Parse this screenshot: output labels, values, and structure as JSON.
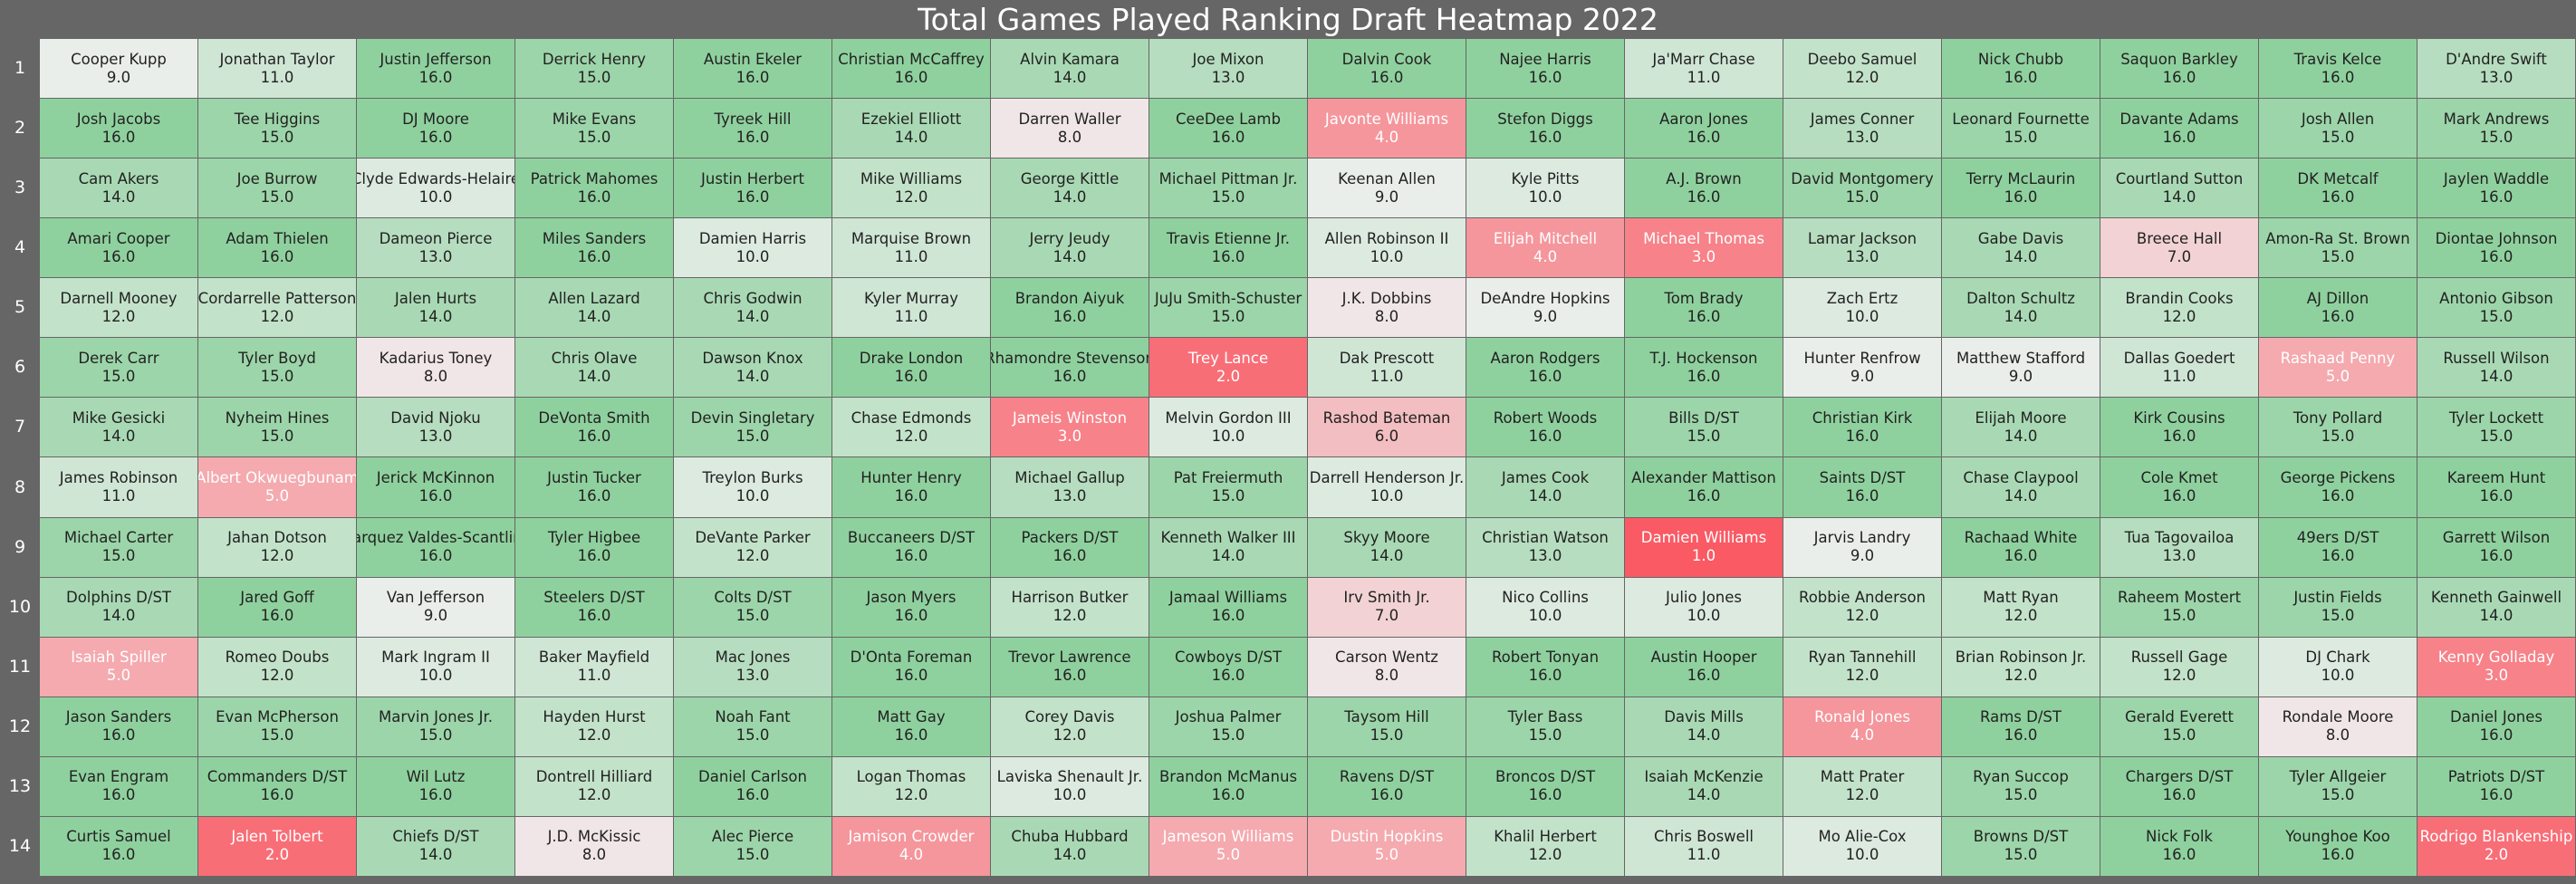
{
  "chart_data": {
    "type": "heatmap",
    "title": "Total Games Played Ranking Draft Heatmap 2022",
    "rows": [
      "1",
      "2",
      "3",
      "4",
      "5",
      "6",
      "7",
      "8",
      "9",
      "10",
      "11",
      "12",
      "13",
      "14"
    ],
    "value_range": [
      1,
      16
    ],
    "colormap": {
      "low": "#f95a64",
      "mid": "#f0f0f0",
      "high": "#8fd19e"
    },
    "cells": [
      [
        [
          "Cooper Kupp",
          "9.0"
        ],
        [
          "Jonathan Taylor",
          "11.0"
        ],
        [
          "Justin Jefferson",
          "16.0"
        ],
        [
          "Derrick Henry",
          "15.0"
        ],
        [
          "Austin Ekeler",
          "16.0"
        ],
        [
          "Christian McCaffrey",
          "16.0"
        ],
        [
          "Alvin Kamara",
          "14.0"
        ],
        [
          "Joe Mixon",
          "13.0"
        ],
        [
          "Dalvin Cook",
          "16.0"
        ],
        [
          "Najee Harris",
          "16.0"
        ],
        [
          "Ja'Marr Chase",
          "11.0"
        ],
        [
          "Deebo Samuel",
          "12.0"
        ],
        [
          "Nick Chubb",
          "16.0"
        ],
        [
          "Saquon Barkley",
          "16.0"
        ],
        [
          "Travis Kelce",
          "16.0"
        ],
        [
          "D'Andre Swift",
          "13.0"
        ]
      ],
      [
        [
          "Josh Jacobs",
          "16.0"
        ],
        [
          "Tee Higgins",
          "15.0"
        ],
        [
          "DJ Moore",
          "16.0"
        ],
        [
          "Mike Evans",
          "15.0"
        ],
        [
          "Tyreek Hill",
          "16.0"
        ],
        [
          "Ezekiel Elliott",
          "14.0"
        ],
        [
          "Darren Waller",
          "8.0"
        ],
        [
          "CeeDee Lamb",
          "16.0"
        ],
        [
          "Javonte Williams",
          "4.0"
        ],
        [
          "Stefon Diggs",
          "16.0"
        ],
        [
          "Aaron Jones",
          "16.0"
        ],
        [
          "James Conner",
          "13.0"
        ],
        [
          "Leonard Fournette",
          "15.0"
        ],
        [
          "Davante Adams",
          "16.0"
        ],
        [
          "Josh Allen",
          "15.0"
        ],
        [
          "Mark Andrews",
          "15.0"
        ]
      ],
      [
        [
          "Cam Akers",
          "14.0"
        ],
        [
          "Joe Burrow",
          "15.0"
        ],
        [
          "Clyde Edwards-Helaire",
          "10.0"
        ],
        [
          "Patrick Mahomes",
          "16.0"
        ],
        [
          "Justin Herbert",
          "16.0"
        ],
        [
          "Mike Williams",
          "12.0"
        ],
        [
          "George Kittle",
          "14.0"
        ],
        [
          "Michael Pittman Jr.",
          "15.0"
        ],
        [
          "Keenan Allen",
          "9.0"
        ],
        [
          "Kyle Pitts",
          "10.0"
        ],
        [
          "A.J. Brown",
          "16.0"
        ],
        [
          "David Montgomery",
          "15.0"
        ],
        [
          "Terry McLaurin",
          "16.0"
        ],
        [
          "Courtland Sutton",
          "14.0"
        ],
        [
          "DK Metcalf",
          "16.0"
        ],
        [
          "Jaylen Waddle",
          "16.0"
        ]
      ],
      [
        [
          "Amari Cooper",
          "16.0"
        ],
        [
          "Adam Thielen",
          "16.0"
        ],
        [
          "Dameon Pierce",
          "13.0"
        ],
        [
          "Miles Sanders",
          "16.0"
        ],
        [
          "Damien Harris",
          "10.0"
        ],
        [
          "Marquise Brown",
          "11.0"
        ],
        [
          "Jerry Jeudy",
          "14.0"
        ],
        [
          "Travis Etienne Jr.",
          "16.0"
        ],
        [
          "Allen Robinson II",
          "10.0"
        ],
        [
          "Elijah Mitchell",
          "4.0"
        ],
        [
          "Michael Thomas",
          "3.0"
        ],
        [
          "Lamar Jackson",
          "13.0"
        ],
        [
          "Gabe Davis",
          "14.0"
        ],
        [
          "Breece Hall",
          "7.0"
        ],
        [
          "Amon-Ra St. Brown",
          "15.0"
        ],
        [
          "Diontae Johnson",
          "16.0"
        ]
      ],
      [
        [
          "Darnell Mooney",
          "12.0"
        ],
        [
          "Cordarrelle Patterson",
          "12.0"
        ],
        [
          "Jalen Hurts",
          "14.0"
        ],
        [
          "Allen Lazard",
          "14.0"
        ],
        [
          "Chris Godwin",
          "14.0"
        ],
        [
          "Kyler Murray",
          "11.0"
        ],
        [
          "Brandon Aiyuk",
          "16.0"
        ],
        [
          "JuJu Smith-Schuster",
          "15.0"
        ],
        [
          "J.K. Dobbins",
          "8.0"
        ],
        [
          "DeAndre Hopkins",
          "9.0"
        ],
        [
          "Tom Brady",
          "16.0"
        ],
        [
          "Zach Ertz",
          "10.0"
        ],
        [
          "Dalton Schultz",
          "14.0"
        ],
        [
          "Brandin Cooks",
          "12.0"
        ],
        [
          "AJ Dillon",
          "16.0"
        ],
        [
          "Antonio Gibson",
          "15.0"
        ]
      ],
      [
        [
          "Derek Carr",
          "15.0"
        ],
        [
          "Tyler Boyd",
          "15.0"
        ],
        [
          "Kadarius Toney",
          "8.0"
        ],
        [
          "Chris Olave",
          "14.0"
        ],
        [
          "Dawson Knox",
          "14.0"
        ],
        [
          "Drake London",
          "16.0"
        ],
        [
          "Rhamondre Stevenson",
          "16.0"
        ],
        [
          "Trey Lance",
          "2.0"
        ],
        [
          "Dak Prescott",
          "11.0"
        ],
        [
          "Aaron Rodgers",
          "16.0"
        ],
        [
          "T.J. Hockenson",
          "16.0"
        ],
        [
          "Hunter Renfrow",
          "9.0"
        ],
        [
          "Matthew Stafford",
          "9.0"
        ],
        [
          "Dallas Goedert",
          "11.0"
        ],
        [
          "Rashaad Penny",
          "5.0"
        ],
        [
          "Russell Wilson",
          "14.0"
        ]
      ],
      [
        [
          "Mike Gesicki",
          "14.0"
        ],
        [
          "Nyheim Hines",
          "15.0"
        ],
        [
          "David Njoku",
          "13.0"
        ],
        [
          "DeVonta Smith",
          "16.0"
        ],
        [
          "Devin Singletary",
          "15.0"
        ],
        [
          "Chase Edmonds",
          "12.0"
        ],
        [
          "Jameis Winston",
          "3.0"
        ],
        [
          "Melvin Gordon III",
          "10.0"
        ],
        [
          "Rashod Bateman",
          "6.0"
        ],
        [
          "Robert Woods",
          "16.0"
        ],
        [
          "Bills D/ST",
          "15.0"
        ],
        [
          "Christian Kirk",
          "16.0"
        ],
        [
          "Elijah Moore",
          "14.0"
        ],
        [
          "Kirk Cousins",
          "16.0"
        ],
        [
          "Tony Pollard",
          "15.0"
        ],
        [
          "Tyler Lockett",
          "15.0"
        ]
      ],
      [
        [
          "James Robinson",
          "11.0"
        ],
        [
          "Albert Okwuegbunam",
          "5.0"
        ],
        [
          "Jerick McKinnon",
          "16.0"
        ],
        [
          "Justin Tucker",
          "16.0"
        ],
        [
          "Treylon Burks",
          "10.0"
        ],
        [
          "Hunter Henry",
          "16.0"
        ],
        [
          "Michael Gallup",
          "13.0"
        ],
        [
          "Pat Freiermuth",
          "15.0"
        ],
        [
          "Darrell Henderson Jr.",
          "10.0"
        ],
        [
          "James Cook",
          "14.0"
        ],
        [
          "Alexander Mattison",
          "16.0"
        ],
        [
          "Saints D/ST",
          "16.0"
        ],
        [
          "Chase Claypool",
          "14.0"
        ],
        [
          "Cole Kmet",
          "16.0"
        ],
        [
          "George Pickens",
          "16.0"
        ],
        [
          "Kareem Hunt",
          "16.0"
        ]
      ],
      [
        [
          "Michael Carter",
          "15.0"
        ],
        [
          "Jahan Dotson",
          "12.0"
        ],
        [
          "Marquez Valdes-Scantling",
          "16.0"
        ],
        [
          "Tyler Higbee",
          "16.0"
        ],
        [
          "DeVante Parker",
          "12.0"
        ],
        [
          "Buccaneers D/ST",
          "16.0"
        ],
        [
          "Packers D/ST",
          "16.0"
        ],
        [
          "Kenneth Walker III",
          "14.0"
        ],
        [
          "Skyy Moore",
          "14.0"
        ],
        [
          "Christian Watson",
          "13.0"
        ],
        [
          "Damien Williams",
          "1.0"
        ],
        [
          "Jarvis Landry",
          "9.0"
        ],
        [
          "Rachaad White",
          "16.0"
        ],
        [
          "Tua Tagovailoa",
          "13.0"
        ],
        [
          "49ers D/ST",
          "16.0"
        ],
        [
          "Garrett Wilson",
          "16.0"
        ]
      ],
      [
        [
          "Dolphins D/ST",
          "14.0"
        ],
        [
          "Jared Goff",
          "16.0"
        ],
        [
          "Van Jefferson",
          "9.0"
        ],
        [
          "Steelers D/ST",
          "16.0"
        ],
        [
          "Colts D/ST",
          "15.0"
        ],
        [
          "Jason Myers",
          "16.0"
        ],
        [
          "Harrison Butker",
          "12.0"
        ],
        [
          "Jamaal Williams",
          "16.0"
        ],
        [
          "Irv Smith Jr.",
          "7.0"
        ],
        [
          "Nico Collins",
          "10.0"
        ],
        [
          "Julio Jones",
          "10.0"
        ],
        [
          "Robbie Anderson",
          "12.0"
        ],
        [
          "Matt Ryan",
          "12.0"
        ],
        [
          "Raheem Mostert",
          "15.0"
        ],
        [
          "Justin Fields",
          "15.0"
        ],
        [
          "Kenneth Gainwell",
          "14.0"
        ]
      ],
      [
        [
          "Isaiah Spiller",
          "5.0"
        ],
        [
          "Romeo Doubs",
          "12.0"
        ],
        [
          "Mark Ingram II",
          "10.0"
        ],
        [
          "Baker Mayfield",
          "11.0"
        ],
        [
          "Mac Jones",
          "13.0"
        ],
        [
          "D'Onta Foreman",
          "16.0"
        ],
        [
          "Trevor Lawrence",
          "16.0"
        ],
        [
          "Cowboys D/ST",
          "16.0"
        ],
        [
          "Carson Wentz",
          "8.0"
        ],
        [
          "Robert Tonyan",
          "16.0"
        ],
        [
          "Austin Hooper",
          "16.0"
        ],
        [
          "Ryan Tannehill",
          "12.0"
        ],
        [
          "Brian Robinson Jr.",
          "12.0"
        ],
        [
          "Russell Gage",
          "12.0"
        ],
        [
          "DJ Chark",
          "10.0"
        ],
        [
          "Kenny Golladay",
          "3.0"
        ]
      ],
      [
        [
          "Jason Sanders",
          "16.0"
        ],
        [
          "Evan McPherson",
          "15.0"
        ],
        [
          "Marvin Jones Jr.",
          "15.0"
        ],
        [
          "Hayden Hurst",
          "12.0"
        ],
        [
          "Noah Fant",
          "15.0"
        ],
        [
          "Matt Gay",
          "16.0"
        ],
        [
          "Corey Davis",
          "12.0"
        ],
        [
          "Joshua Palmer",
          "15.0"
        ],
        [
          "Taysom Hill",
          "15.0"
        ],
        [
          "Tyler Bass",
          "15.0"
        ],
        [
          "Davis Mills",
          "14.0"
        ],
        [
          "Ronald Jones",
          "4.0"
        ],
        [
          "Rams D/ST",
          "16.0"
        ],
        [
          "Gerald Everett",
          "15.0"
        ],
        [
          "Rondale Moore",
          "8.0"
        ],
        [
          "Daniel Jones",
          "16.0"
        ]
      ],
      [
        [
          "Evan Engram",
          "16.0"
        ],
        [
          "Commanders D/ST",
          "16.0"
        ],
        [
          "Wil Lutz",
          "16.0"
        ],
        [
          "Dontrell Hilliard",
          "12.0"
        ],
        [
          "Daniel Carlson",
          "16.0"
        ],
        [
          "Logan Thomas",
          "12.0"
        ],
        [
          "Laviska Shenault Jr.",
          "10.0"
        ],
        [
          "Brandon McManus",
          "16.0"
        ],
        [
          "Ravens D/ST",
          "16.0"
        ],
        [
          "Broncos D/ST",
          "16.0"
        ],
        [
          "Isaiah McKenzie",
          "14.0"
        ],
        [
          "Matt Prater",
          "12.0"
        ],
        [
          "Ryan Succop",
          "15.0"
        ],
        [
          "Chargers D/ST",
          "16.0"
        ],
        [
          "Tyler Allgeier",
          "15.0"
        ],
        [
          "Patriots D/ST",
          "16.0"
        ]
      ],
      [
        [
          "Curtis Samuel",
          "16.0"
        ],
        [
          "Jalen Tolbert",
          "2.0"
        ],
        [
          "Chiefs D/ST",
          "14.0"
        ],
        [
          "J.D. McKissic",
          "8.0"
        ],
        [
          "Alec Pierce",
          "15.0"
        ],
        [
          "Jamison Crowder",
          "4.0"
        ],
        [
          "Chuba Hubbard",
          "14.0"
        ],
        [
          "Jameson Williams",
          "5.0"
        ],
        [
          "Dustin Hopkins",
          "5.0"
        ],
        [
          "Khalil Herbert",
          "12.0"
        ],
        [
          "Chris Boswell",
          "11.0"
        ],
        [
          "Mo Alie-Cox",
          "10.0"
        ],
        [
          "Browns D/ST",
          "15.0"
        ],
        [
          "Nick Folk",
          "16.0"
        ],
        [
          "Younghoe Koo",
          "16.0"
        ],
        [
          "Rodrigo Blankenship",
          "2.0"
        ]
      ]
    ]
  }
}
